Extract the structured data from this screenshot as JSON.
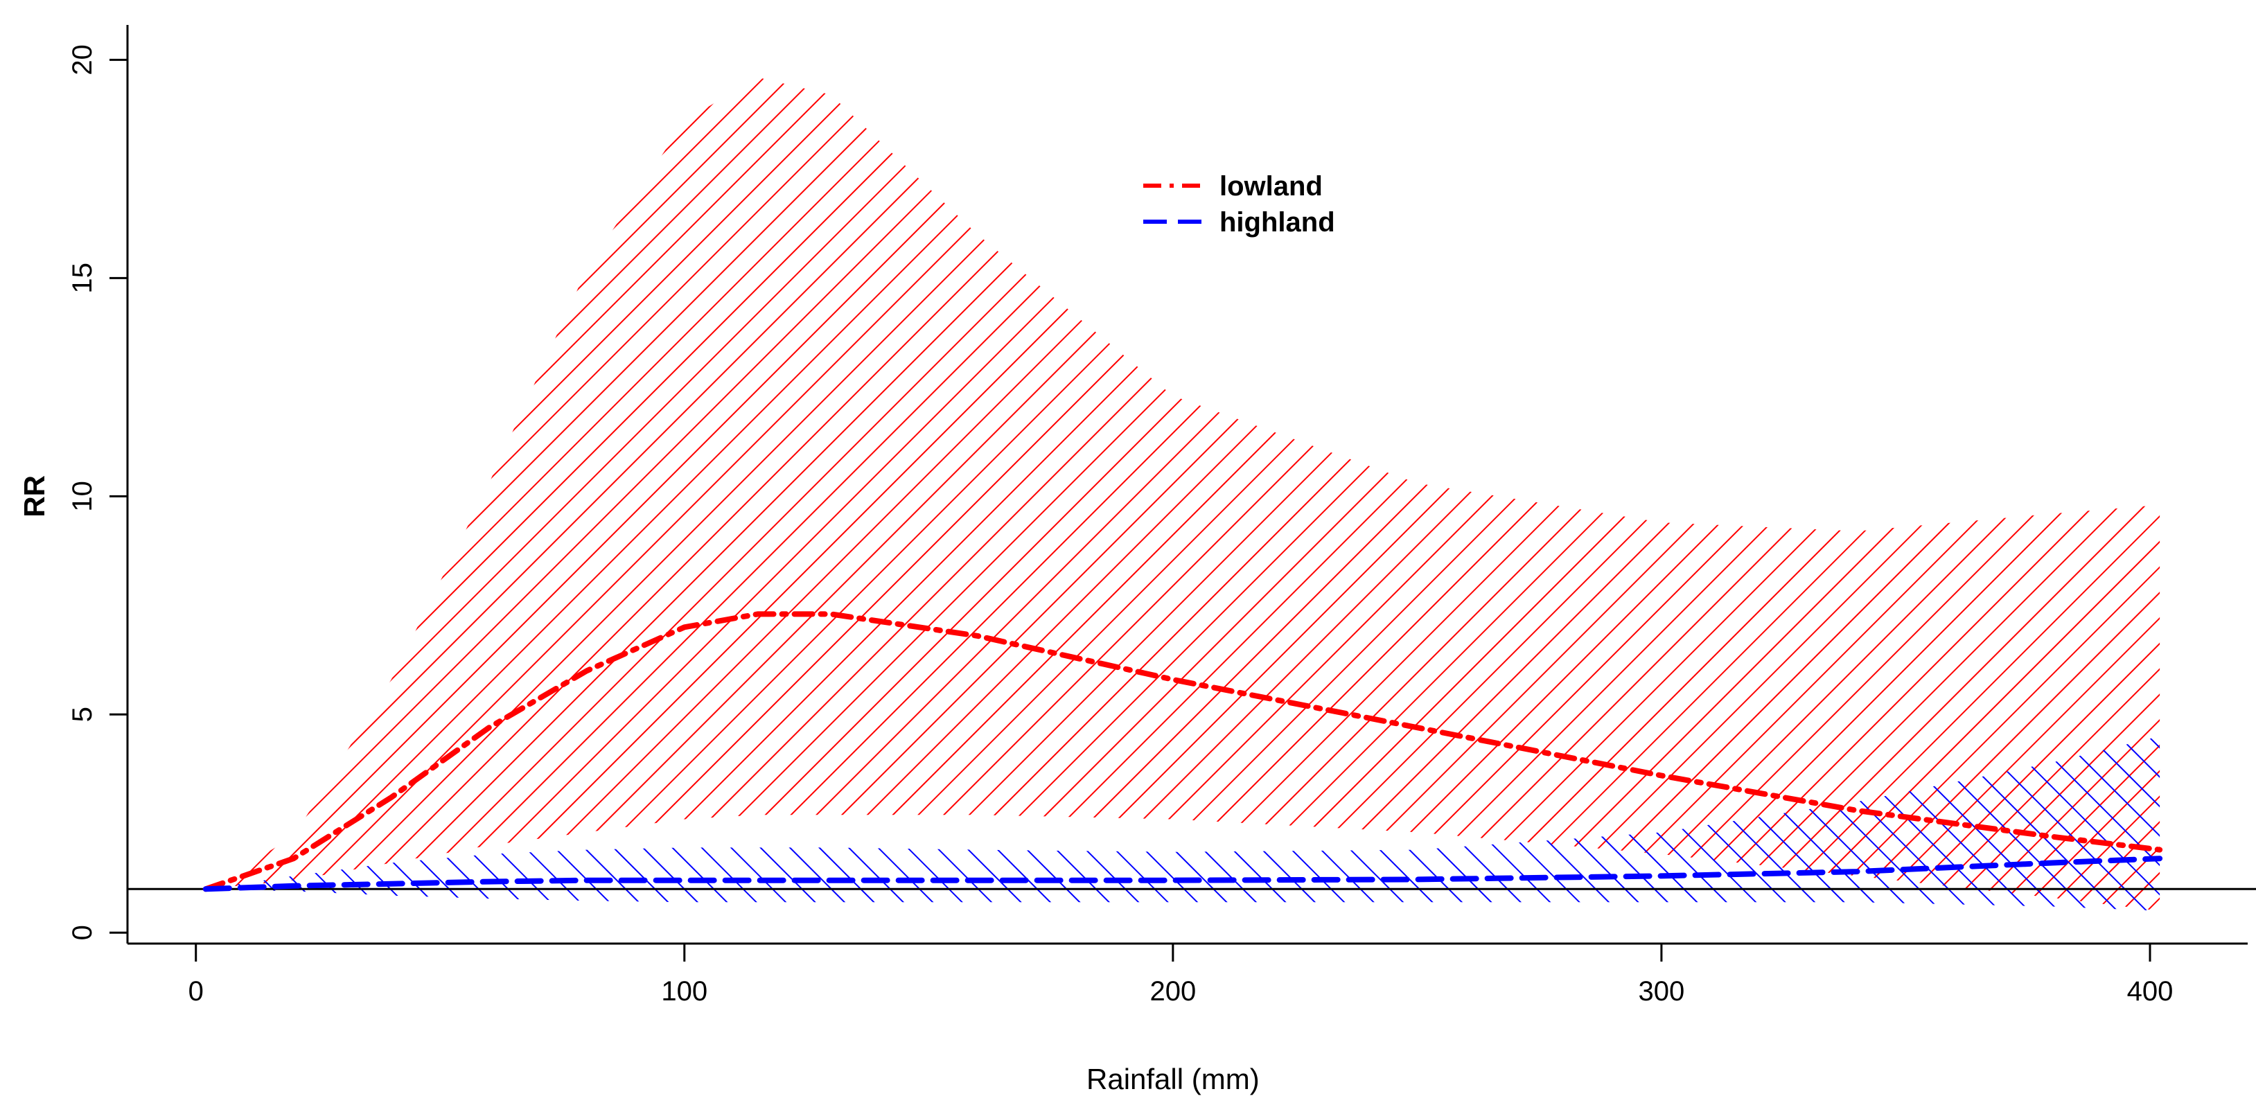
{
  "chart_data": {
    "type": "line",
    "title": "",
    "xlabel": "Rainfall (mm)",
    "ylabel": "RR",
    "xlim": [
      -14,
      420
    ],
    "ylim": [
      -0.25,
      20.8
    ],
    "x_ticks": [
      0,
      100,
      200,
      300,
      400
    ],
    "y_ticks": [
      0,
      5,
      10,
      15,
      20
    ],
    "reference_line": {
      "y": 1,
      "color": "#000000"
    },
    "legend": {
      "placement": "top-center"
    },
    "series": [
      {
        "name": "lowland",
        "color": "#ff0000",
        "style": "dash-dot",
        "x": [
          2,
          20,
          40,
          60,
          80,
          100,
          115,
          130,
          160,
          200,
          250,
          300,
          340,
          380,
          402
        ],
        "y": [
          1.0,
          1.7,
          3.1,
          4.7,
          6.0,
          7.0,
          7.3,
          7.3,
          6.8,
          5.8,
          4.7,
          3.6,
          2.8,
          2.2,
          1.9
        ],
        "ci_lower": [
          1.0,
          1.2,
          1.6,
          2.0,
          2.3,
          2.6,
          2.7,
          2.7,
          2.7,
          2.6,
          2.3,
          1.8,
          1.3,
          0.8,
          0.5
        ],
        "ci_upper": [
          1.0,
          2.2,
          5.8,
          10.3,
          15.2,
          18.6,
          19.6,
          19.2,
          16.0,
          12.3,
          10.3,
          9.4,
          9.2,
          9.6,
          9.8
        ]
      },
      {
        "name": "highland",
        "color": "#0000ff",
        "style": "dashed",
        "x": [
          2,
          20,
          40,
          60,
          80,
          100,
          130,
          160,
          200,
          250,
          300,
          340,
          380,
          402
        ],
        "y": [
          1.0,
          1.07,
          1.12,
          1.17,
          1.2,
          1.2,
          1.2,
          1.2,
          1.2,
          1.22,
          1.3,
          1.4,
          1.6,
          1.7
        ],
        "ci_lower": [
          1.0,
          0.95,
          0.85,
          0.78,
          0.73,
          0.7,
          0.7,
          0.7,
          0.7,
          0.7,
          0.7,
          0.7,
          0.6,
          0.5
        ],
        "ci_upper": [
          1.0,
          1.3,
          1.6,
          1.8,
          1.9,
          1.95,
          1.95,
          1.9,
          1.85,
          1.9,
          2.3,
          3.0,
          3.9,
          4.5
        ]
      }
    ]
  }
}
